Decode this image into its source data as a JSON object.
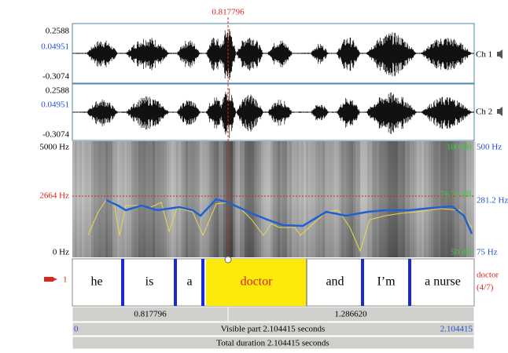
{
  "cursor_time": "0.817796",
  "channels": [
    {
      "max": "0.2588",
      "value": "0.04951",
      "min": "-0.3074",
      "label": "Ch 1"
    },
    {
      "max": "0.2588",
      "value": "0.04951",
      "min": "-0.3074",
      "label": "Ch 2"
    }
  ],
  "spectrogram": {
    "freq_max": "5000 Hz",
    "freq_cursor": "2664 Hz",
    "freq_min": "0 Hz",
    "pitch_max": "500 Hz",
    "pitch_cursor": "281.2 Hz",
    "pitch_min": "75 Hz",
    "db_max": "100 dB",
    "db_cursor": "76.71 dB",
    "db_min": "50 dB"
  },
  "tier": {
    "number": "1",
    "intervals": [
      "he",
      "is",
      "a",
      "doctor",
      "and",
      "I’m",
      "a nurse"
    ],
    "selected": "doctor",
    "selected_index": "(4/7)"
  },
  "durations": {
    "left": "0.817796",
    "right": "1.286620"
  },
  "visible": {
    "start": "0",
    "label": "Visible part 2.104415 seconds",
    "end": "2.104415"
  },
  "total": "Total duration 2.104415 seconds"
}
